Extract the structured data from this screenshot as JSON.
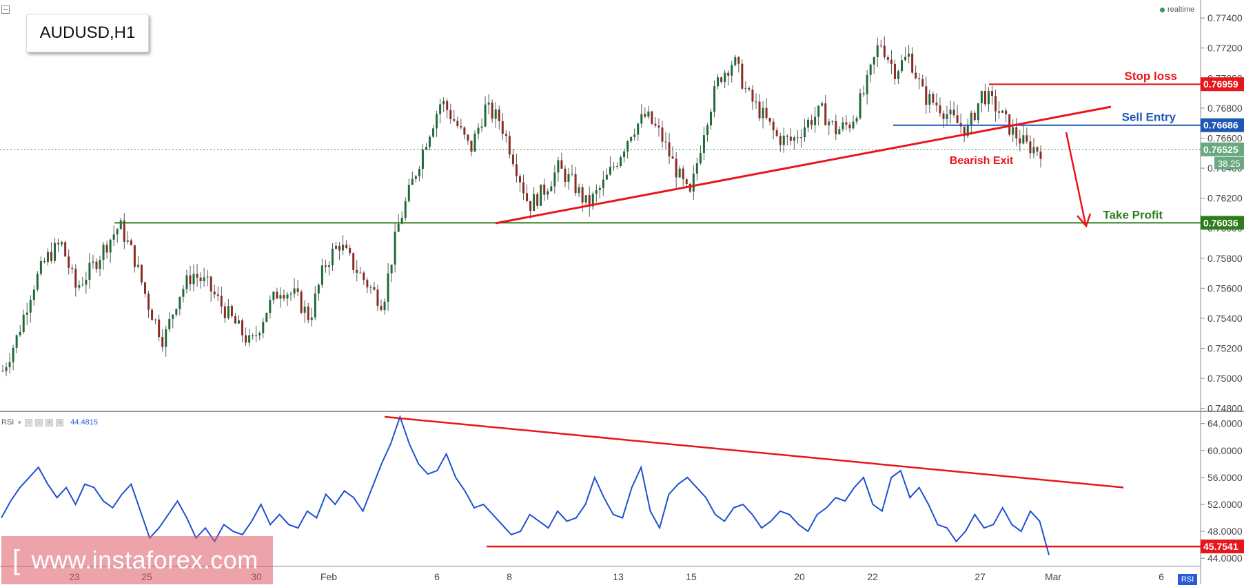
{
  "symbol_label": "AUDUSD,H1",
  "realtime_label": "realtime",
  "watermark": {
    "bracket": "[",
    "text": "www.instaforex.com"
  },
  "rsi_panel": {
    "name": "RSI",
    "value": "44.4815",
    "tag": "RSI"
  },
  "chart_data": [
    {
      "type": "candlestick",
      "title": "AUDUSD,H1",
      "ylim": [
        0.7478,
        0.7752
      ],
      "y_ticks": [
        "0.77400",
        "0.77200",
        "0.77000",
        "0.76800",
        "0.76600",
        "0.76400",
        "0.76200",
        "0.76000",
        "0.75800",
        "0.75600",
        "0.75400",
        "0.75200",
        "0.75000",
        "0.74800"
      ],
      "x_tick_labels": [
        "23",
        "25",
        "30",
        "Feb",
        "6",
        "8",
        "13",
        "15",
        "20",
        "22",
        "27",
        "Mar",
        "6"
      ],
      "current_price": {
        "value": "0.76525",
        "countdown": "38.25"
      },
      "levels": [
        {
          "name": "Stop loss",
          "value": 0.76959,
          "label": "0.76959",
          "color": "#e8151b"
        },
        {
          "name": "Sell Entry",
          "value": 0.76686,
          "label": "0.76686",
          "color": "#1f57b5"
        },
        {
          "name": "Take Profit",
          "value": 0.76036,
          "label": "0.76036",
          "color": "#2e7d1c"
        }
      ],
      "annotations": [
        "Bearish Exit"
      ],
      "price_path": [
        0.7505,
        0.7528,
        0.756,
        0.758,
        0.759,
        0.756,
        0.7572,
        0.7588,
        0.7602,
        0.758,
        0.7548,
        0.7525,
        0.7555,
        0.757,
        0.7562,
        0.7548,
        0.7535,
        0.7522,
        0.7545,
        0.756,
        0.7555,
        0.754,
        0.7575,
        0.759,
        0.7575,
        0.7562,
        0.755,
        0.76,
        0.763,
        0.766,
        0.7685,
        0.767,
        0.7652,
        0.768,
        0.7672,
        0.7645,
        0.7615,
        0.7625,
        0.764,
        0.763,
        0.7615,
        0.7628,
        0.7645,
        0.7665,
        0.7675,
        0.7662,
        0.764,
        0.762,
        0.7668,
        0.77,
        0.7712,
        0.7688,
        0.7675,
        0.766,
        0.7658,
        0.767,
        0.7678,
        0.7665,
        0.767,
        0.7692,
        0.7725,
        0.7705,
        0.7715,
        0.7688,
        0.7682,
        0.7672,
        0.7665,
        0.769,
        0.768,
        0.7665,
        0.7655,
        0.7652
      ],
      "rsi": {
        "ylim": [
          43.0,
          65.5
        ],
        "y_ticks": [
          "64.0000",
          "60.0000",
          "56.0000",
          "52.0000",
          "48.0000",
          "44.0000"
        ],
        "current": {
          "value": 45.7541,
          "label": "45.7541"
        },
        "values": [
          50.0,
          52.5,
          54.5,
          56.0,
          57.5,
          55.0,
          53.0,
          54.5,
          52.0,
          55.0,
          54.5,
          52.5,
          51.5,
          53.5,
          55.0,
          51.0,
          47.0,
          48.5,
          50.5,
          52.5,
          50.0,
          47.0,
          48.5,
          46.5,
          49.0,
          48.0,
          47.5,
          49.5,
          52.0,
          49.0,
          50.5,
          49.0,
          48.5,
          51.0,
          50.0,
          53.5,
          52.0,
          54.0,
          53.0,
          51.0,
          54.5,
          58.0,
          61.0,
          65.0,
          61.0,
          58.0,
          56.5,
          57.0,
          59.5,
          56.0,
          54.0,
          51.5,
          52.0,
          50.5,
          49.0,
          47.5,
          48.0,
          50.5,
          49.5,
          48.5,
          51.0,
          49.5,
          50.0,
          52.0,
          56.0,
          53.0,
          50.5,
          50.0,
          54.5,
          57.5,
          51.0,
          48.5,
          53.5,
          55.0,
          56.0,
          54.5,
          53.0,
          50.5,
          49.5,
          51.5,
          52.0,
          50.5,
          48.5,
          49.5,
          51.0,
          50.5,
          49.0,
          48.0,
          50.5,
          51.5,
          53.0,
          52.5,
          54.5,
          56.0,
          52.0,
          51.0,
          56.0,
          57.0,
          53.0,
          54.5,
          52.0,
          49.0,
          48.5,
          46.5,
          48.0,
          50.5,
          48.5,
          49.0,
          51.5,
          49.0,
          48.0,
          51.0,
          49.5,
          44.5
        ],
        "trend_lines": [
          {
            "from": 65.0,
            "to": 54.5
          },
          {
            "from": 45.75,
            "to": 45.75
          }
        ]
      }
    }
  ]
}
